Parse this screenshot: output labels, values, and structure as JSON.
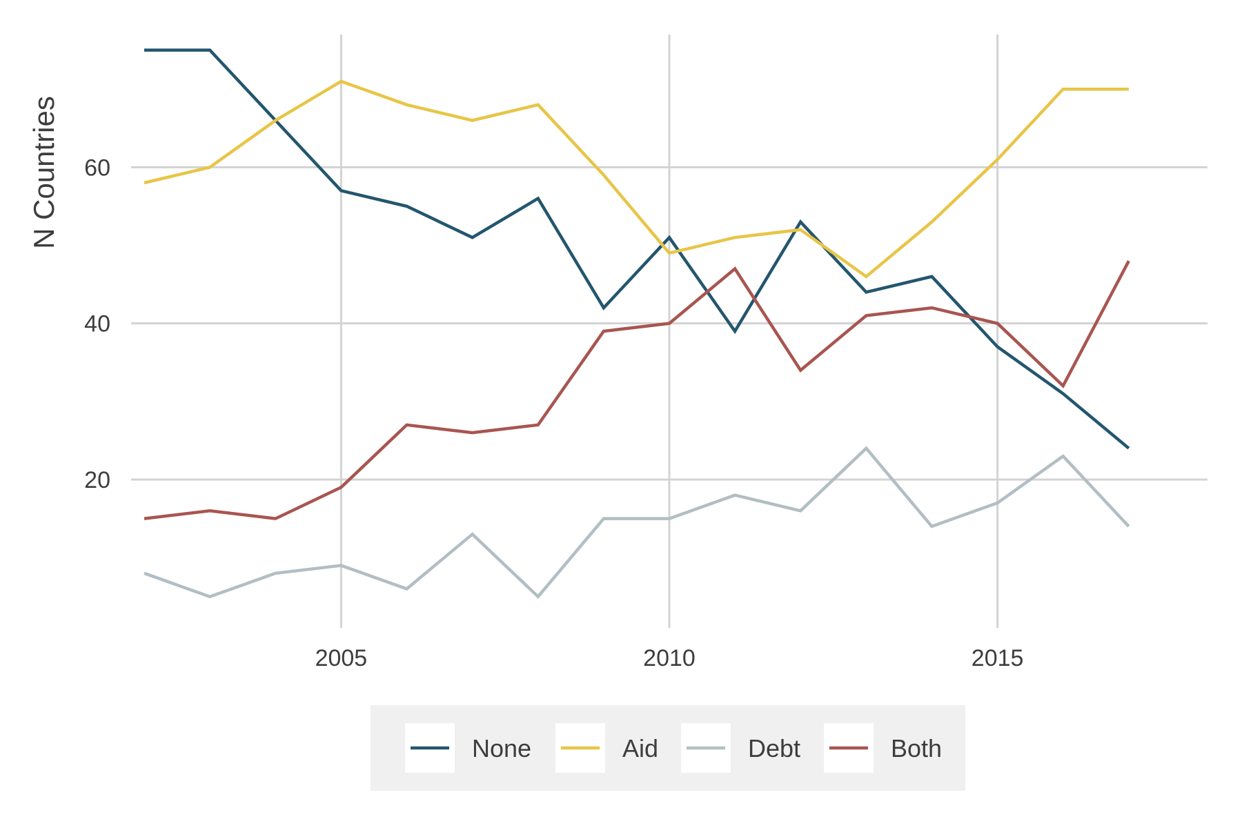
{
  "chart_data": {
    "type": "line",
    "ylabel": "N Countries",
    "xlabel": "",
    "title": "",
    "xlim": [
      2001.8,
      2018.2
    ],
    "ylim": [
      1,
      77
    ],
    "x_ticks": [
      2005,
      2010,
      2015
    ],
    "x_tick_labels": [
      "2005",
      "2010",
      "2015"
    ],
    "y_ticks": [
      20,
      40,
      60
    ],
    "y_tick_labels": [
      "20",
      "40",
      "60"
    ],
    "grid": true,
    "legend": {
      "position": "bottom",
      "background": "#f0f0f0"
    },
    "x": [
      2002,
      2003,
      2004,
      2005,
      2006,
      2007,
      2008,
      2009,
      2010,
      2011,
      2012,
      2013,
      2014,
      2015,
      2016,
      2017
    ],
    "series": [
      {
        "name": "None",
        "color": "#23566e",
        "values": [
          75,
          75,
          66,
          57,
          55,
          51,
          56,
          42,
          51,
          39,
          53,
          44,
          46,
          37,
          31,
          24
        ]
      },
      {
        "name": "Aid",
        "color": "#e8c547",
        "values": [
          58,
          60,
          66,
          71,
          68,
          66,
          68,
          59,
          49,
          51,
          52,
          46,
          53,
          61,
          70,
          70
        ]
      },
      {
        "name": "Debt",
        "color": "#b2bec3",
        "values": [
          8,
          5,
          8,
          9,
          6,
          13,
          5,
          15,
          15,
          18,
          16,
          24,
          14,
          17,
          23,
          14
        ]
      },
      {
        "name": "Both",
        "color": "#a85550",
        "values": [
          15,
          16,
          15,
          19,
          27,
          26,
          27,
          39,
          40,
          47,
          34,
          41,
          42,
          40,
          32,
          48
        ]
      }
    ]
  }
}
